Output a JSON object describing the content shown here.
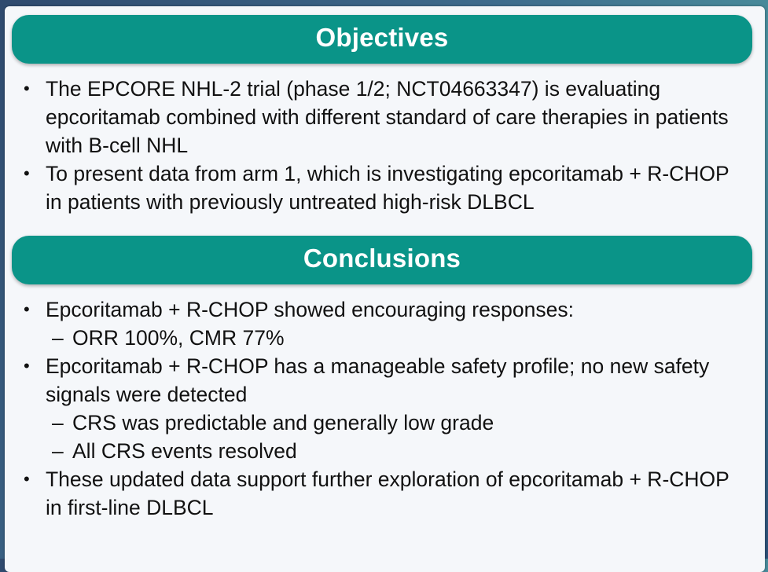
{
  "objectives": {
    "title": "Objectives",
    "items": [
      {
        "text": "The EPCORE NHL-2 trial (phase 1/2; NCT04663347) is evaluating epcoritamab combined with different standard of care therapies in patients with B-cell NHL"
      },
      {
        "text": "To present data from arm 1, which is investigating epcoritamab + R-CHOP in patients with previously untreated high-risk DLBCL"
      }
    ]
  },
  "conclusions": {
    "title": "Conclusions",
    "items": [
      {
        "text": "Epcoritamab + R-CHOP showed encouraging responses:",
        "subitems": [
          "ORR 100%, CMR 77%"
        ]
      },
      {
        "text": "Epcoritamab + R-CHOP has a manageable safety profile; no new safety signals were detected",
        "subitems": [
          "CRS was predictable and generally low grade",
          "All CRS events resolved"
        ]
      },
      {
        "text": "These updated data support further exploration of epcoritamab + R-CHOP in first-line DLBCL"
      }
    ]
  },
  "glyphs": {
    "bullet": "•",
    "dash": "–"
  },
  "colors": {
    "header_bg": "#0a9488",
    "panel_bg": "#f5f7fa",
    "text": "#111111"
  }
}
